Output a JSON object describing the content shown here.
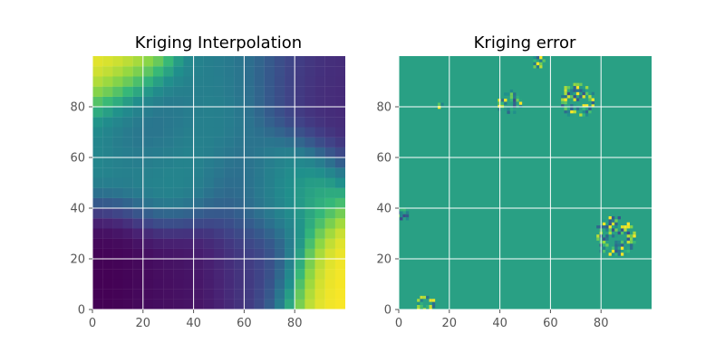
{
  "chart_data": [
    {
      "type": "heatmap",
      "title": "Kriging Interpolation",
      "xlabel": "",
      "ylabel": "",
      "xlim": [
        0,
        100
      ],
      "ylim": [
        0,
        100
      ],
      "x_ticks": [
        0,
        20,
        40,
        60,
        80
      ],
      "y_ticks": [
        0,
        20,
        40,
        60,
        80
      ],
      "x_tick_labels": [
        "0",
        "20",
        "40",
        "60",
        "80"
      ],
      "y_tick_labels": [
        "0",
        "20",
        "40",
        "60",
        "80"
      ],
      "grid": true,
      "colormap": "viridis",
      "field_features": [
        {
          "x": 8,
          "y": 92,
          "value": 1.0
        },
        {
          "x": 96,
          "y": 12,
          "value": 1.0
        },
        {
          "x": 75,
          "y": 48,
          "value": 0.78
        },
        {
          "x": 32,
          "y": 52,
          "value": 0.62
        },
        {
          "x": 5,
          "y": 57,
          "value": 0.62
        },
        {
          "x": 42,
          "y": 66,
          "value": 0.58
        },
        {
          "x": 60,
          "y": 92,
          "value": 0.55
        },
        {
          "x": 5,
          "y": 25,
          "value": 0.0
        },
        {
          "x": 38,
          "y": 18,
          "value": 0.05
        },
        {
          "x": 80,
          "y": 92,
          "value": 0.18
        },
        {
          "x": 96,
          "y": 80,
          "value": 0.15
        },
        {
          "x": 62,
          "y": 20,
          "value": 0.22
        },
        {
          "x": 20,
          "y": 72,
          "value": 0.35
        },
        {
          "x": 62,
          "y": 50,
          "value": 0.3
        }
      ],
      "background_value": 0.38
    },
    {
      "type": "heatmap",
      "title": "Kriging error",
      "xlabel": "",
      "ylabel": "",
      "xlim": [
        0,
        100
      ],
      "ylim": [
        0,
        100
      ],
      "x_ticks": [
        0,
        20,
        40,
        60,
        80
      ],
      "y_ticks": [
        0,
        20,
        40,
        60,
        80
      ],
      "x_tick_labels": [
        "0",
        "20",
        "40",
        "60",
        "80"
      ],
      "y_tick_labels": [
        "0",
        "20",
        "40",
        "60",
        "80"
      ],
      "grid": true,
      "colormap": "viridis",
      "background_value": 0.68,
      "noise_clusters": [
        {
          "x": 43,
          "y": 81,
          "r": 5
        },
        {
          "x": 70,
          "y": 82,
          "r": 7
        },
        {
          "x": 85,
          "y": 28,
          "r": 8
        },
        {
          "x": 1,
          "y": 37,
          "r": 3
        },
        {
          "x": 10,
          "y": 1,
          "r": 4
        },
        {
          "x": 55,
          "y": 97,
          "r": 3
        },
        {
          "x": 15,
          "y": 80,
          "r": 2
        }
      ]
    }
  ]
}
